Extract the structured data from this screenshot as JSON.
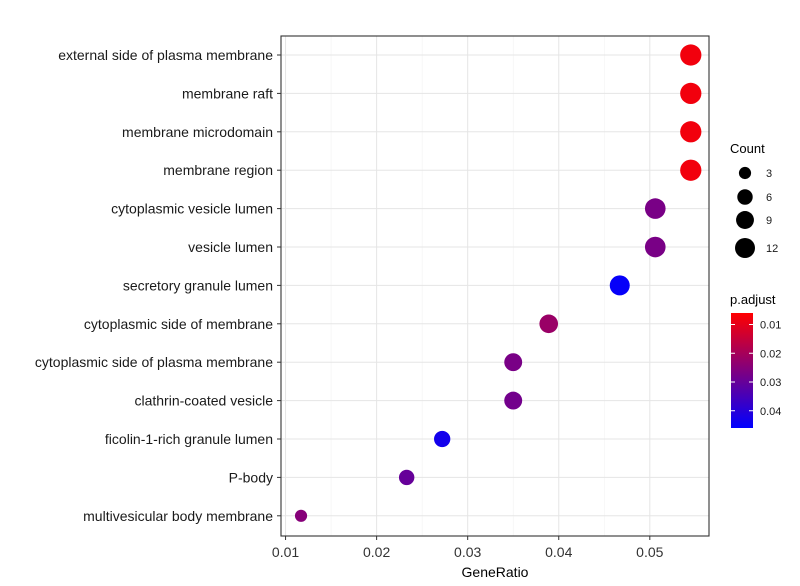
{
  "chart_data": {
    "type": "scatter",
    "xlabel": "GeneRatio",
    "x_ticks": [
      0.01,
      0.02,
      0.03,
      0.04,
      0.05
    ],
    "x_tick_labels": [
      "0.01",
      "0.02",
      "0.03",
      "0.04",
      "0.05"
    ],
    "xlim": [
      0.0095,
      0.0565
    ],
    "grid": true,
    "categories": [
      "external side of plasma membrane",
      "membrane raft",
      "membrane microdomain",
      "membrane region",
      "cytoplasmic vesicle lumen",
      "vesicle lumen",
      "secretory granule lumen",
      "cytoplasmic side of membrane",
      "cytoplasmic side of plasma membrane",
      "clathrin-coated vesicle",
      "ficolin-1-rich granule lumen",
      "P-body",
      "multivesicular body membrane"
    ],
    "points": [
      {
        "term": "external side of plasma membrane",
        "gene_ratio": 0.0545,
        "count": 14,
        "p_adjust": 0.008
      },
      {
        "term": "membrane raft",
        "gene_ratio": 0.0545,
        "count": 14,
        "p_adjust": 0.008
      },
      {
        "term": "membrane microdomain",
        "gene_ratio": 0.0545,
        "count": 14,
        "p_adjust": 0.008
      },
      {
        "term": "membrane region",
        "gene_ratio": 0.0545,
        "count": 14,
        "p_adjust": 0.008
      },
      {
        "term": "cytoplasmic vesicle lumen",
        "gene_ratio": 0.0506,
        "count": 13,
        "p_adjust": 0.027
      },
      {
        "term": "vesicle lumen",
        "gene_ratio": 0.0506,
        "count": 13,
        "p_adjust": 0.027
      },
      {
        "term": "secretory granule lumen",
        "gene_ratio": 0.0467,
        "count": 12,
        "p_adjust": 0.045
      },
      {
        "term": "cytoplasmic side of membrane",
        "gene_ratio": 0.0389,
        "count": 10,
        "p_adjust": 0.022
      },
      {
        "term": "cytoplasmic side of plasma membrane",
        "gene_ratio": 0.035,
        "count": 9,
        "p_adjust": 0.027
      },
      {
        "term": "clathrin-coated vesicle",
        "gene_ratio": 0.035,
        "count": 9,
        "p_adjust": 0.028
      },
      {
        "term": "ficolin-1-rich granule lumen",
        "gene_ratio": 0.0272,
        "count": 7,
        "p_adjust": 0.043
      },
      {
        "term": "P-body",
        "gene_ratio": 0.0233,
        "count": 6,
        "p_adjust": 0.03
      },
      {
        "term": "multivesicular body membrane",
        "gene_ratio": 0.0117,
        "count": 3,
        "p_adjust": 0.025
      }
    ],
    "legend_size": {
      "title": "Count",
      "values": [
        3,
        6,
        9,
        12
      ],
      "labels": [
        "3",
        "6",
        "9",
        "12"
      ],
      "placement": "right"
    },
    "legend_color": {
      "title": "p.adjust",
      "min": 0.006,
      "max": 0.046,
      "ticks": [
        0.01,
        0.02,
        0.03,
        0.04
      ],
      "tick_labels": [
        "0.01",
        "0.02",
        "0.03",
        "0.04"
      ],
      "low_color": "#ff0000",
      "high_color": "#0000ff",
      "placement": "right"
    }
  }
}
